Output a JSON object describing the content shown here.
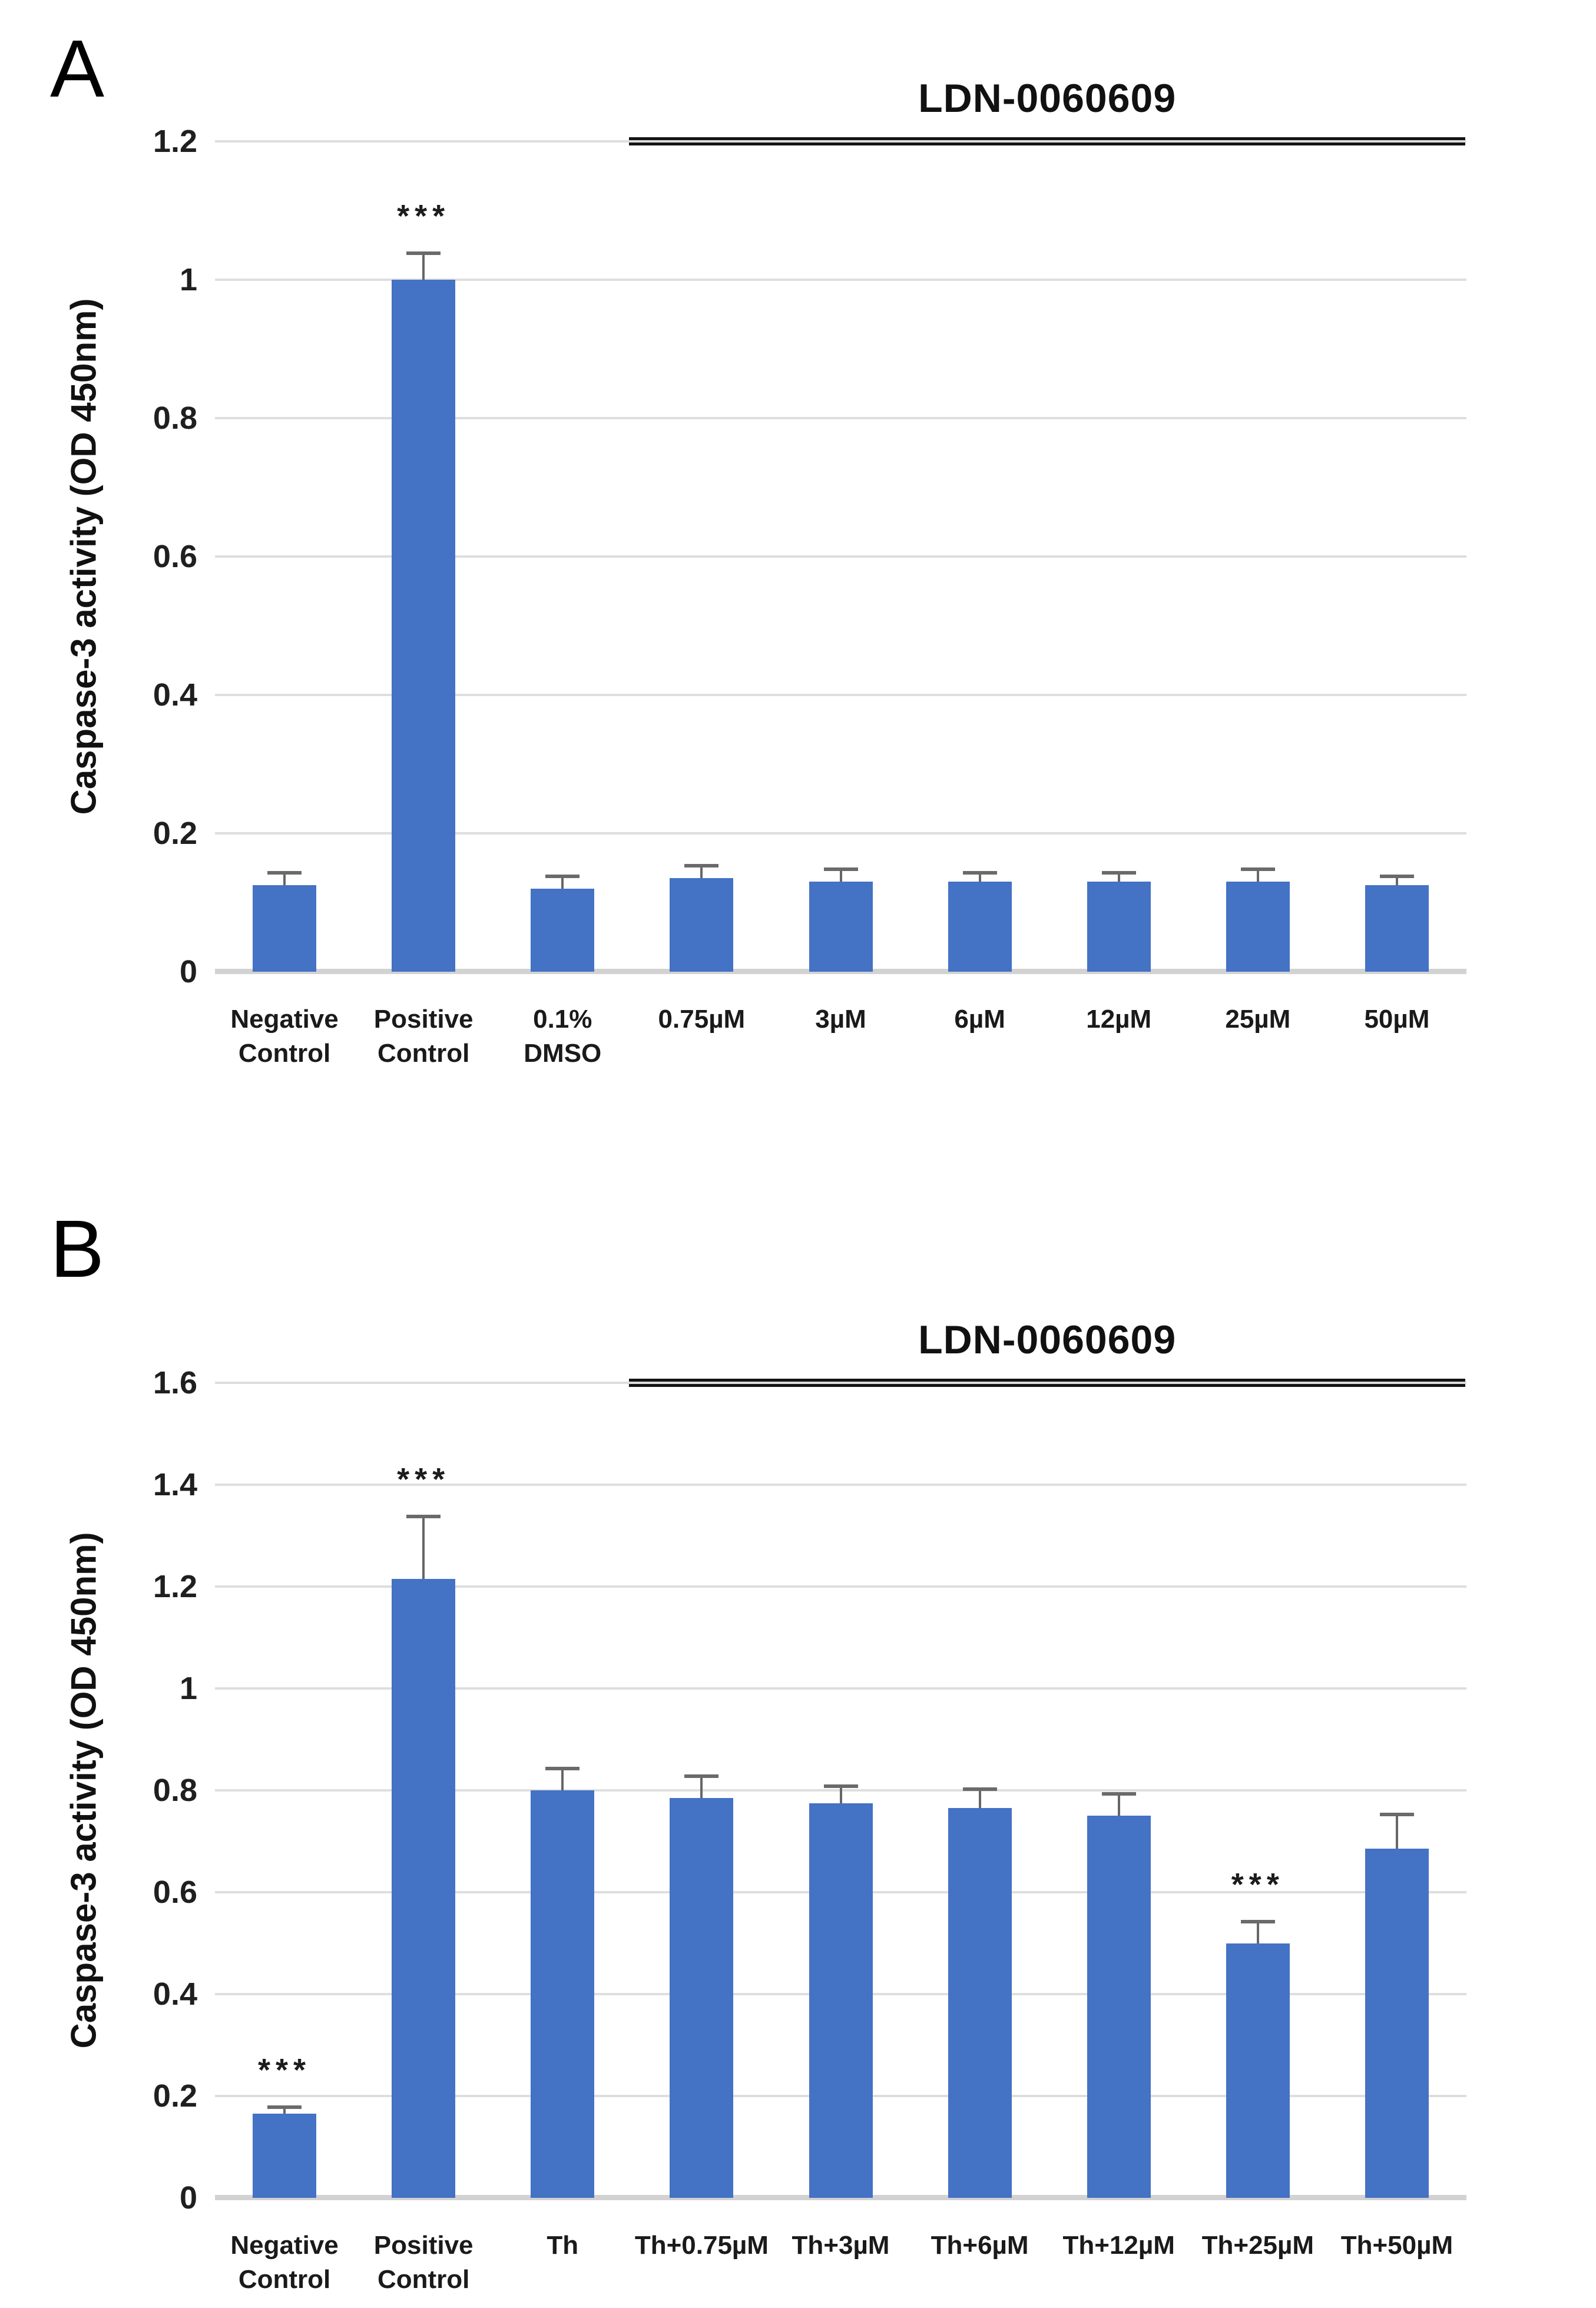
{
  "figure": {
    "background": "#ffffff",
    "description_panels": [
      "A",
      "B"
    ]
  },
  "colors": {
    "bar_fill": "#4472C4",
    "error_bar": "#666666",
    "gridline": "#dedede",
    "axis_line": "#d2d2d2",
    "treatment_line": "#141414",
    "text": "#1a1a1a"
  },
  "chart_data": [
    {
      "type": "bar",
      "panel_label": "A",
      "title": "LDN-0060609",
      "ylabel": "Caspase-3 activity (OD 450nm)",
      "xlabel": "",
      "ylim": [
        0,
        1.2
      ],
      "grid": true,
      "legend_position": "none",
      "ytick_values": [
        0,
        0.2,
        0.4,
        0.6,
        0.8,
        1,
        1.2
      ],
      "ytick_labels": [
        "0",
        "0.2",
        "0.4",
        "0.6",
        "0.8",
        "1",
        "1.2"
      ],
      "categories": [
        [
          "Negative",
          "Control"
        ],
        [
          "Positive",
          "Control"
        ],
        [
          "0.1%",
          "DMSO"
        ],
        [
          "0.75µM"
        ],
        [
          "3µM"
        ],
        [
          "6µM"
        ],
        [
          "12µM"
        ],
        [
          "25µM"
        ],
        [
          "50µM"
        ]
      ],
      "values": [
        0.125,
        1.0,
        0.12,
        0.135,
        0.13,
        0.13,
        0.13,
        0.13,
        0.125
      ],
      "errors_plus": [
        0.02,
        0.04,
        0.02,
        0.02,
        0.02,
        0.015,
        0.015,
        0.02,
        0.015
      ],
      "significance": [
        "",
        "***",
        "",
        "",
        "",
        "",
        "",
        "",
        ""
      ],
      "treatment_span_label": "LDN-0060609",
      "treatment_span_categories": [
        "0.75µM",
        "50µM"
      ]
    },
    {
      "type": "bar",
      "panel_label": "B",
      "title": "LDN-0060609",
      "ylabel": "Caspase-3 activity (OD 450nm)",
      "xlabel": "",
      "ylim": [
        0,
        1.6
      ],
      "grid": true,
      "legend_position": "none",
      "ytick_values": [
        0,
        0.2,
        0.4,
        0.6,
        0.8,
        1,
        1.2,
        1.4,
        1.6
      ],
      "ytick_labels": [
        "0",
        "0.2",
        "0.4",
        "0.6",
        "0.8",
        "1",
        "1.2",
        "1.4",
        "1.6"
      ],
      "categories": [
        [
          "Negative",
          "Control"
        ],
        [
          "Positive",
          "Control"
        ],
        [
          "Th"
        ],
        [
          "Th+0.75µM"
        ],
        [
          "Th+3µM"
        ],
        [
          "Th+6µM"
        ],
        [
          "Th+12µM"
        ],
        [
          "Th+25µM"
        ],
        [
          "Th+50µM"
        ]
      ],
      "values": [
        0.165,
        1.215,
        0.8,
        0.785,
        0.775,
        0.765,
        0.75,
        0.5,
        0.685
      ],
      "errors_plus": [
        0.015,
        0.125,
        0.045,
        0.045,
        0.035,
        0.04,
        0.045,
        0.045,
        0.07
      ],
      "significance": [
        "***",
        "***",
        "",
        "",
        "",
        "",
        "",
        "***",
        ""
      ],
      "treatment_span_label": "LDN-0060609",
      "treatment_span_categories": [
        "Th+0.75µM",
        "Th+50µM"
      ]
    }
  ]
}
